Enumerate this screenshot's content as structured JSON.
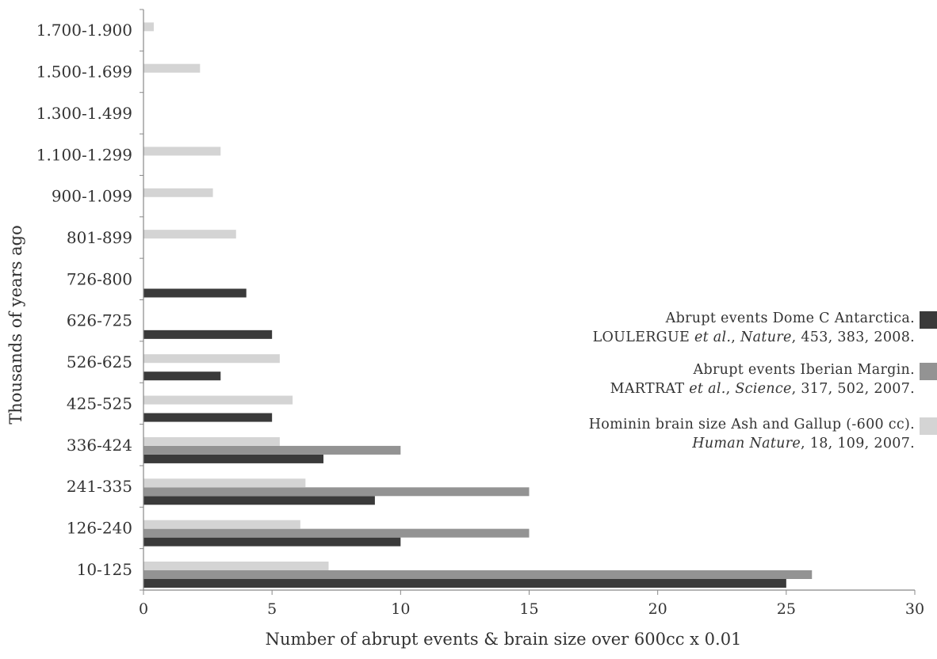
{
  "chart_data": {
    "type": "bar",
    "orientation": "horizontal",
    "ylabel": "Thousands of years ago",
    "xlabel": "Number of abrupt events & brain size over 600cc x 0.01",
    "xlim": [
      0,
      30
    ],
    "xticks": [
      "0",
      "5",
      "10",
      "15",
      "20",
      "25",
      "30"
    ],
    "categories": [
      "10-125",
      "126-240",
      "241-335",
      "336-424",
      "425-525",
      "526-625",
      "626-725",
      "726-800",
      "801-899",
      "900-1.099",
      "1.100-1.299",
      "1.300-1.499",
      "1.500-1.699",
      "1.700-1.900"
    ],
    "series": [
      {
        "color": "#3a3a3a",
        "values": [
          25,
          10,
          9,
          7,
          5,
          3,
          5,
          4,
          0,
          0,
          0,
          0,
          0,
          0
        ]
      },
      {
        "color": "#939393",
        "values": [
          26,
          15,
          15,
          10,
          0,
          0,
          0,
          0,
          0,
          0,
          0,
          0,
          0,
          0
        ]
      },
      {
        "color": "#d4d4d4",
        "values": [
          7.2,
          6.1,
          6.3,
          5.3,
          5.8,
          5.3,
          0,
          0,
          3.6,
          2.7,
          3.0,
          0,
          2.2,
          0.4
        ]
      }
    ],
    "legend_position": "right",
    "grid": false
  },
  "legend": [
    {
      "line1": "Abrupt events Dome C Antarctica.",
      "line2_pre": "LOULERGUE ",
      "line2_it1": "et al.",
      "line2_mid": ", ",
      "line2_it2": "Nature",
      "line2_post": ", 453, 383, 2008.",
      "color": "#3a3a3a"
    },
    {
      "line1": "Abrupt events Iberian Margin.",
      "line2_pre": "MARTRAT ",
      "line2_it1": "et al.",
      "line2_mid": ", ",
      "line2_it2": "Science",
      "line2_post": ", 317, 502, 2007.",
      "color": "#939393"
    },
    {
      "line1": "Hominin brain size Ash and Gallup (-600 cc).",
      "line2_pre": "",
      "line2_it1": "Human Nature",
      "line2_mid": "",
      "line2_it2": "",
      "line2_post": ", 18, 109, 2007.",
      "color": "#d4d4d4"
    }
  ]
}
